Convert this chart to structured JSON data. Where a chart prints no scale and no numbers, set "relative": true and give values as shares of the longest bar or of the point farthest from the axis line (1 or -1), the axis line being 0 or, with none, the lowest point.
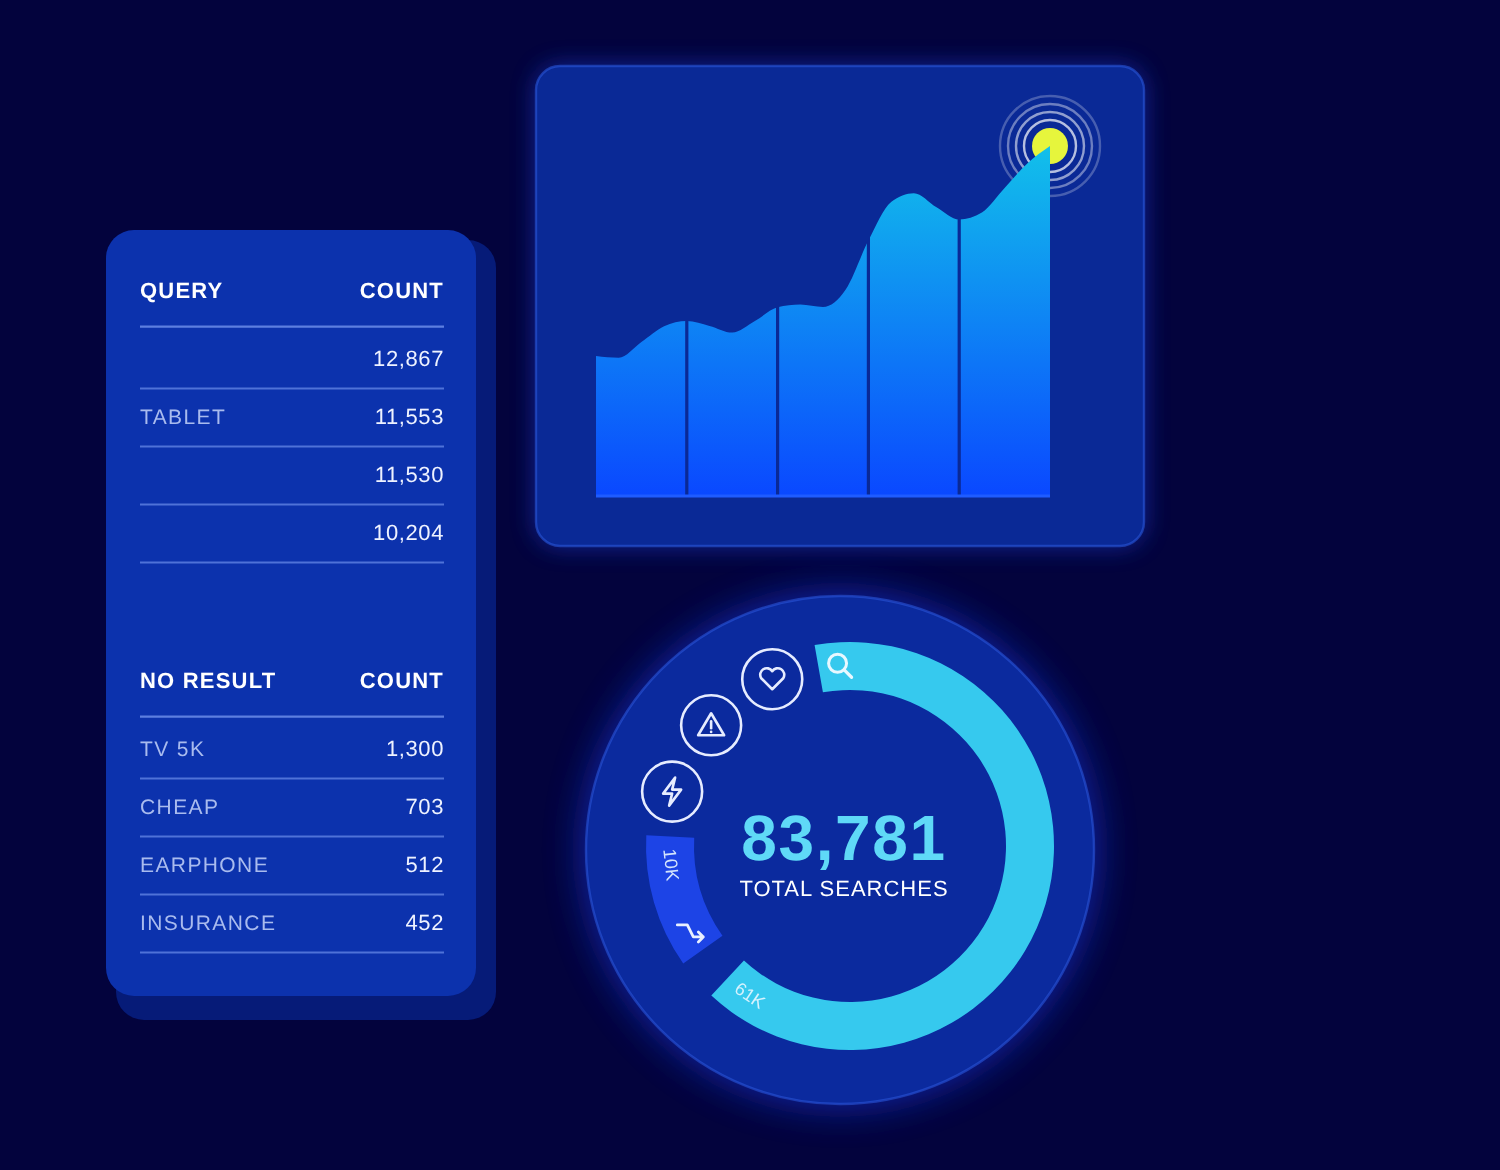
{
  "chart_data": [
    {
      "type": "other",
      "xlabel": "QUERY",
      "ylabel": "COUNT",
      "categories": [
        null,
        "TABLET",
        null,
        null
      ],
      "values": [
        12867,
        11553,
        11530,
        10204
      ],
      "value_labels": [
        "12,867",
        "11,553",
        "11,530",
        "10,204"
      ]
    },
    {
      "type": "other",
      "xlabel": "NO RESULT",
      "ylabel": "COUNT",
      "categories": [
        "TV 5K",
        "CHEAP",
        "EARPHONE",
        "INSURANCE"
      ],
      "values": [
        1300,
        703,
        512,
        452
      ],
      "value_labels": [
        "1,300",
        "703",
        "512",
        "452"
      ]
    },
    {
      "type": "area",
      "relative": true,
      "categories": [
        null,
        null,
        null,
        null,
        null,
        null,
        null,
        null,
        null,
        null,
        null,
        null,
        null,
        null,
        null,
        null,
        null,
        null,
        null,
        null,
        null
      ],
      "values": [
        0.4,
        0.395,
        0.44,
        0.485,
        0.5,
        0.486,
        0.467,
        0.5,
        0.539,
        0.547,
        0.54,
        0.59,
        0.73,
        0.84,
        0.865,
        0.825,
        0.79,
        0.81,
        0.88,
        0.95,
        1.0
      ],
      "color": "#12c0ea"
    },
    {
      "type": "donut",
      "categories": [
        null,
        null
      ],
      "values": [
        61000,
        10000
      ],
      "colors": [
        "#36c9ee",
        "#1d44e6"
      ],
      "value_labels": [
        "61K",
        "10K"
      ],
      "annotations": [
        "83,781",
        "TOTAL SEARCHES"
      ]
    }
  ]
}
